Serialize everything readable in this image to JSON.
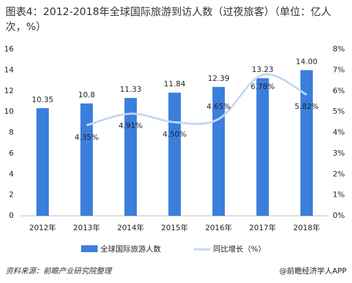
{
  "chart_data": {
    "type": "bar_line",
    "title": "图表4：2012-2018年全球国际旅游到访人数（过夜旅客）（单位：亿人次，%）",
    "categories": [
      "2012年",
      "2013年",
      "2014年",
      "2015年",
      "2016年",
      "2017年",
      "2018年"
    ],
    "series": [
      {
        "name": "全球国际旅游人数",
        "type": "bar",
        "color": "#3b7fdc",
        "values": [
          10.35,
          10.8,
          11.33,
          11.84,
          12.39,
          13.23,
          14.0
        ],
        "value_labels": [
          "10.35",
          "10.8",
          "11.33",
          "11.84",
          "12.39",
          "13.23",
          "14.00"
        ]
      },
      {
        "name": "同比增长（%）",
        "type": "line",
        "axis": "y2",
        "color": "#c5d8f0",
        "values": [
          null,
          4.35,
          4.91,
          4.5,
          4.65,
          6.78,
          5.82
        ],
        "value_labels": [
          null,
          "4.35%",
          "4.91%",
          "4.50%",
          "4.65%",
          "6.78%",
          "5.82%"
        ]
      }
    ],
    "ylim": [
      0,
      16
    ],
    "yticks": [
      0,
      2,
      4,
      6,
      8,
      10,
      12,
      14,
      16
    ],
    "y2lim": [
      0,
      8
    ],
    "y2ticks": [
      {
        "value": 0,
        "label": "0%"
      },
      {
        "value": 1,
        "label": "1%"
      },
      {
        "value": 2,
        "label": "2%"
      },
      {
        "value": 3,
        "label": "3%"
      },
      {
        "value": 4,
        "label": "4%"
      },
      {
        "value": 5,
        "label": "5%"
      },
      {
        "value": 6,
        "label": "6%"
      },
      {
        "value": 7,
        "label": "7%"
      },
      {
        "value": 8,
        "label": "8%"
      }
    ],
    "source": "资料来源：前瞻产业研究院整理",
    "footer": "@前瞻经济学人APP"
  }
}
